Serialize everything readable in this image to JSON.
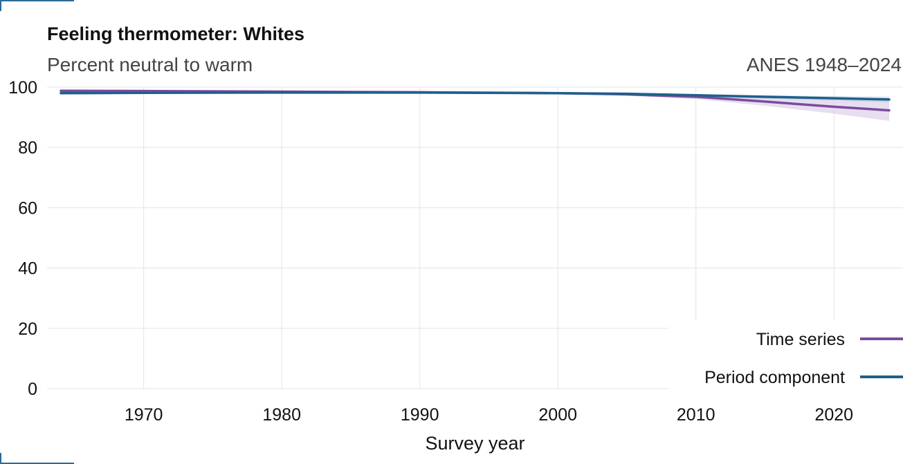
{
  "header": {
    "title": "Feeling thermometer: Whites",
    "subtitle": "Percent neutral to warm",
    "source": "ANES 1948–2024"
  },
  "colors": {
    "time_series": "#7b4b9e",
    "time_series_band": "#d9c8e6",
    "period_component": "#1f5f8b",
    "period_band": "#b9cfdf",
    "grid": "#e3e3e3",
    "corner_mark": "#2a6a96"
  },
  "chart_data": {
    "type": "line",
    "title": "Feeling thermometer: Whites",
    "subtitle": "Percent neutral to warm",
    "xlabel": "Survey year",
    "ylabel": "",
    "xlim": [
      1963,
      2025
    ],
    "ylim": [
      0,
      100
    ],
    "x_ticks": [
      1970,
      1980,
      1990,
      2000,
      2010,
      2020
    ],
    "y_ticks": [
      0,
      20,
      40,
      60,
      80,
      100
    ],
    "grid": true,
    "legend_position": "bottom-right",
    "series": [
      {
        "name": "Time series",
        "color": "#7b4b9e",
        "x": [
          1964,
          1970,
          1980,
          1990,
          2000,
          2005,
          2010,
          2015,
          2020,
          2024
        ],
        "y": [
          98.8,
          98.7,
          98.5,
          98.3,
          98.0,
          97.6,
          96.8,
          95.2,
          93.5,
          92.3
        ],
        "lower": [
          98.3,
          98.3,
          98.2,
          98.0,
          97.7,
          97.2,
          96.0,
          93.8,
          91.2,
          88.8
        ],
        "upper": [
          99.2,
          99.1,
          98.9,
          98.6,
          98.3,
          98.0,
          97.6,
          96.6,
          95.8,
          95.4
        ]
      },
      {
        "name": "Period component",
        "color": "#1f5f8b",
        "x": [
          1964,
          1970,
          1980,
          1990,
          2000,
          2005,
          2010,
          2015,
          2020,
          2024
        ],
        "y": [
          98.0,
          98.1,
          98.2,
          98.2,
          98.0,
          97.8,
          97.3,
          96.8,
          96.3,
          95.9
        ],
        "lower": [
          97.8,
          97.9,
          98.0,
          98.0,
          97.8,
          97.5,
          96.9,
          96.2,
          95.5,
          94.9
        ],
        "upper": [
          98.2,
          98.3,
          98.4,
          98.4,
          98.2,
          98.1,
          97.7,
          97.3,
          97.0,
          96.8
        ]
      }
    ]
  }
}
